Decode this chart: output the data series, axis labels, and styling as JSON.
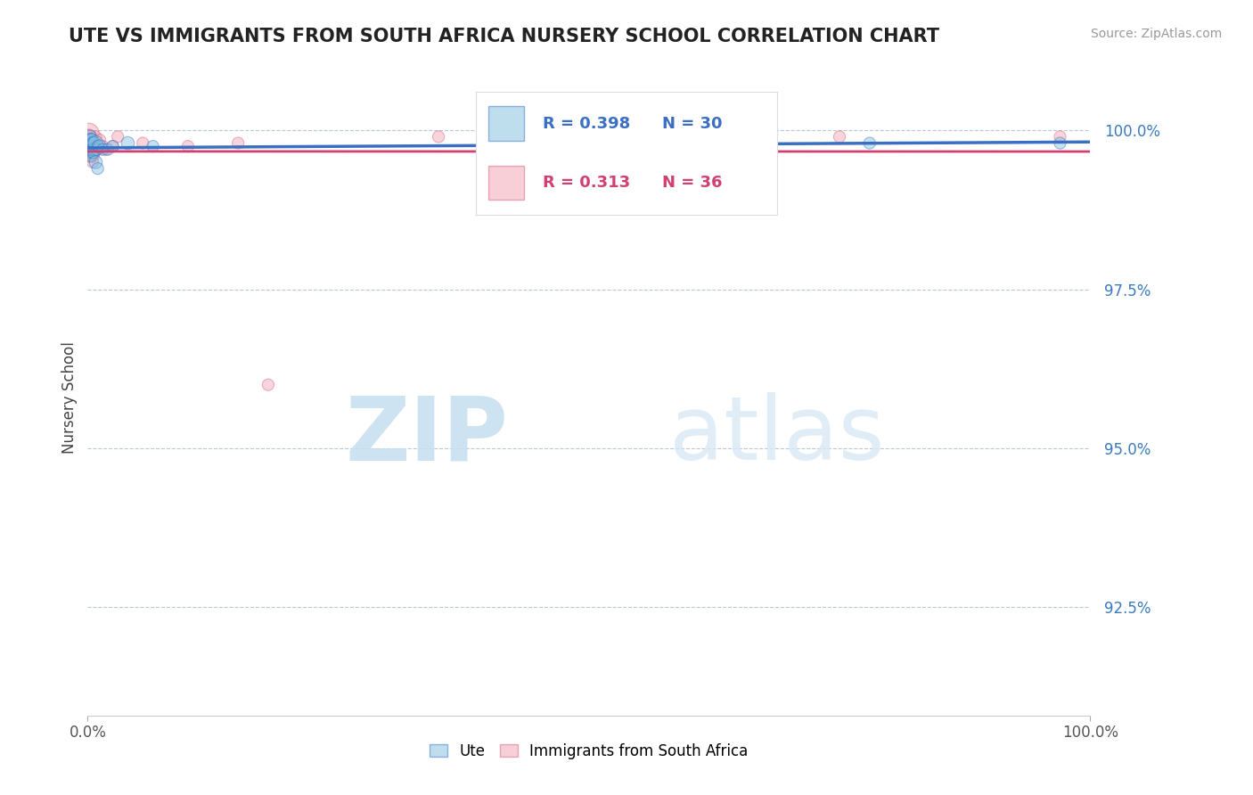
{
  "title": "UTE VS IMMIGRANTS FROM SOUTH AFRICA NURSERY SCHOOL CORRELATION CHART",
  "source": "Source: ZipAtlas.com",
  "ylabel": "Nursery School",
  "legend_label1": "Ute",
  "legend_label2": "Immigrants from South Africa",
  "R1": 0.398,
  "N1": 30,
  "R2": 0.313,
  "N2": 36,
  "color1": "#7fbfdf",
  "color2": "#f4a0b0",
  "trendline1_color": "#3a6fc4",
  "trendline2_color": "#d04070",
  "xlim": [
    0.0,
    1.0
  ],
  "ylim": [
    0.908,
    1.008
  ],
  "yticks": [
    0.925,
    0.95,
    0.975,
    1.0
  ],
  "ytick_labels": [
    "92.5%",
    "95.0%",
    "97.5%",
    "100.0%"
  ],
  "xtick_labels": [
    "0.0%",
    "100.0%"
  ],
  "xticks": [
    0.0,
    1.0
  ],
  "watermark_zip": "ZIP",
  "watermark_atlas": "atlas",
  "blue_x": [
    0.001,
    0.001,
    0.001,
    0.001,
    0.002,
    0.002,
    0.003,
    0.003,
    0.003,
    0.004,
    0.004,
    0.005,
    0.005,
    0.006,
    0.006,
    0.007,
    0.008,
    0.008,
    0.009,
    0.01,
    0.01,
    0.012,
    0.015,
    0.02,
    0.025,
    0.04,
    0.065,
    0.55,
    0.78,
    0.97
  ],
  "blue_y": [
    0.9985,
    0.998,
    0.9975,
    0.9965,
    0.999,
    0.997,
    0.9985,
    0.9975,
    0.996,
    0.9985,
    0.997,
    0.998,
    0.9965,
    0.998,
    0.9965,
    0.997,
    0.998,
    0.995,
    0.997,
    0.9975,
    0.994,
    0.9975,
    0.997,
    0.997,
    0.9975,
    0.998,
    0.9975,
    0.998,
    0.998,
    0.998
  ],
  "blue_sizes": [
    100,
    120,
    100,
    90,
    120,
    100,
    110,
    90,
    100,
    110,
    90,
    100,
    90,
    110,
    90,
    120,
    140,
    110,
    90,
    90,
    90,
    110,
    90,
    90,
    90,
    110,
    90,
    110,
    90,
    90
  ],
  "pink_x": [
    0.001,
    0.001,
    0.001,
    0.001,
    0.001,
    0.001,
    0.001,
    0.002,
    0.002,
    0.002,
    0.003,
    0.003,
    0.003,
    0.004,
    0.004,
    0.004,
    0.005,
    0.005,
    0.005,
    0.006,
    0.007,
    0.008,
    0.01,
    0.012,
    0.015,
    0.018,
    0.025,
    0.03,
    0.055,
    0.1,
    0.15,
    0.18,
    0.35,
    0.55,
    0.75,
    0.97
  ],
  "pink_y": [
    0.9995,
    0.999,
    0.9985,
    0.998,
    0.9975,
    0.9965,
    0.996,
    0.999,
    0.998,
    0.997,
    0.9985,
    0.9975,
    0.9965,
    0.9985,
    0.9975,
    0.996,
    0.998,
    0.996,
    0.995,
    0.9965,
    0.997,
    0.999,
    0.997,
    0.9985,
    0.9975,
    0.997,
    0.9975,
    0.999,
    0.998,
    0.9975,
    0.998,
    0.96,
    0.999,
    0.999,
    0.999,
    0.999
  ],
  "pink_sizes": [
    280,
    150,
    120,
    110,
    150,
    120,
    110,
    110,
    120,
    110,
    110,
    110,
    90,
    110,
    90,
    90,
    90,
    110,
    90,
    90,
    90,
    90,
    90,
    90,
    90,
    90,
    90,
    90,
    90,
    90,
    90,
    90,
    90,
    90,
    90,
    90
  ]
}
